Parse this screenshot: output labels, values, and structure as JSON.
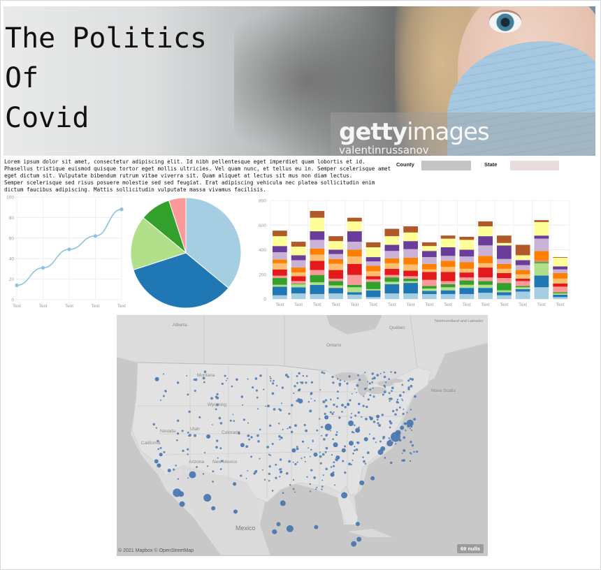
{
  "title": {
    "line1": "The Politics",
    "line2": "Of",
    "line3": "Covid"
  },
  "hero": {
    "watermark_logo_a": "getty",
    "watermark_logo_b": "images",
    "watermark_user": "valentinrussanov"
  },
  "intro": {
    "paragraph1": "Lorem ipsum dolor sit amet, consectetur adipiscing elit. Id nibh pellentesque eget imperdiet quam lobortis et id. Phasellus tristique euismod quisque tortor eget mollis ultricies. Vel quam nunc, et tellus eu in. Semper scelerisque amet eget dictum sit. Vulputate bibendum rutrum vitae viverra sit. Quam aliquet at lectus sit mus non diam lectus.",
    "paragraph2": "Semper scelerisque sed risus posuere molestie sed sed feugiat. Erat adipiscing vehicula nec platea sollicitudin enim dictum faucibus adipiscing. Mattis sollicitudin vulputate massa vivamus facilisis."
  },
  "filters": {
    "county": {
      "label": "County",
      "color": "#c4c4c4"
    },
    "state": {
      "label": "State",
      "color": "#e8dcdc"
    }
  },
  "chart_data": [
    {
      "type": "line",
      "x": [
        "Text",
        "Text",
        "Text",
        "Text",
        "Text"
      ],
      "values": [
        14,
        31,
        49,
        62,
        88
      ],
      "ylim": [
        0,
        100
      ],
      "yticks": [
        0,
        20,
        40,
        60,
        80,
        100
      ],
      "color": "#8ec1e0",
      "grid": true
    },
    {
      "type": "pie",
      "slices": [
        {
          "value": 36,
          "color": "#a6cee3"
        },
        {
          "value": 34,
          "color": "#1f78b4"
        },
        {
          "value": 16,
          "color": "#b2df8a"
        },
        {
          "value": 9,
          "color": "#33a02c"
        },
        {
          "value": 5,
          "color": "#fb9a99"
        }
      ]
    },
    {
      "type": "bar",
      "stacked": true,
      "categories": [
        "Text",
        "Text",
        "Text",
        "Text",
        "Text",
        "Text",
        "Text",
        "Text",
        "Text",
        "Text",
        "Text",
        "Text",
        "Text",
        "Text",
        "Text",
        "Text"
      ],
      "ylim": [
        0,
        800
      ],
      "yticks": [
        0,
        200,
        400,
        600,
        800
      ],
      "grid": true,
      "colors": [
        "#a6cee3",
        "#1f78b4",
        "#b2df8a",
        "#33a02c",
        "#fb9a99",
        "#e31a1c",
        "#fdbf6f",
        "#ff7f00",
        "#cab2d6",
        "#6a3d9a",
        "#ffff99",
        "#b15928"
      ],
      "series": [
        {
          "values": [
            30,
            45,
            40,
            45,
            35,
            15,
            45,
            45,
            40,
            40,
            40,
            50,
            30,
            60,
            95,
            15
          ]
        },
        {
          "values": [
            70,
            50,
            75,
            45,
            20,
            55,
            75,
            85,
            25,
            30,
            50,
            40,
            25,
            20,
            95,
            20
          ]
        },
        {
          "values": [
            15,
            25,
            20,
            20,
            40,
            10,
            20,
            15,
            20,
            25,
            25,
            25,
            15,
            15,
            100,
            10
          ]
        },
        {
          "values": [
            55,
            5,
            60,
            35,
            20,
            60,
            35,
            20,
            20,
            25,
            35,
            30,
            60,
            10,
            10,
            10
          ]
        },
        {
          "values": [
            20,
            20,
            40,
            20,
            80,
            20,
            20,
            20,
            50,
            25,
            25,
            30,
            40,
            40,
            5,
            45
          ]
        },
        {
          "values": [
            50,
            40,
            75,
            70,
            90,
            25,
            50,
            45,
            65,
            75,
            40,
            80,
            40,
            20,
            5,
            25
          ]
        },
        {
          "values": [
            50,
            30,
            50,
            50,
            60,
            40,
            45,
            50,
            20,
            40,
            30,
            35,
            35,
            35,
            5,
            40
          ]
        },
        {
          "values": [
            30,
            40,
            50,
            40,
            55,
            45,
            40,
            55,
            45,
            50,
            55,
            60,
            40,
            35,
            75,
            45
          ]
        },
        {
          "values": [
            60,
            60,
            70,
            40,
            65,
            35,
            60,
            70,
            55,
            40,
            45,
            85,
            40,
            40,
            100,
            30
          ]
        },
        {
          "values": [
            50,
            40,
            70,
            35,
            85,
            35,
            50,
            65,
            50,
            70,
            55,
            75,
            110,
            40,
            25,
            25
          ]
        },
        {
          "values": [
            80,
            70,
            110,
            70,
            80,
            80,
            70,
            70,
            40,
            70,
            80,
            80,
            20,
            40,
            110,
            70
          ]
        },
        {
          "values": [
            45,
            40,
            55,
            40,
            30,
            40,
            60,
            50,
            30,
            25,
            25,
            40,
            60,
            85,
            15,
            5
          ]
        }
      ]
    },
    {
      "type": "scatter",
      "subtype": "symbol-map",
      "basemap": "Mapbox",
      "attribution": "© 2021 Mapbox © OpenStreetMap",
      "nulls_label": "69 nulls",
      "place_labels": [
        "Alberta",
        "Québec",
        "Newfoundland and Labrador",
        "Ontario",
        "Nova Scotia",
        "Montana",
        "Wyoming",
        "Nevada",
        "Utah",
        "Colorado",
        "California",
        "Arizona",
        "New Mexico",
        "Mexico"
      ],
      "point_color": "#4a78b0",
      "points": [
        {
          "lon": -118.24,
          "lat": 34.05,
          "r": 6
        },
        {
          "lon": -122.3,
          "lat": 47.6,
          "r": 3
        },
        {
          "lon": -122.4,
          "lat": 37.8,
          "r": 3
        },
        {
          "lon": -121.9,
          "lat": 37.3,
          "r": 3
        },
        {
          "lon": -121.5,
          "lat": 38.6,
          "r": 2.5
        },
        {
          "lon": -117.2,
          "lat": 32.7,
          "r": 4
        },
        {
          "lon": -117.4,
          "lat": 33.9,
          "r": 4
        },
        {
          "lon": -119.8,
          "lat": 36.7,
          "r": 2.5
        },
        {
          "lon": -115.1,
          "lat": 36.2,
          "r": 5
        },
        {
          "lon": -112.1,
          "lat": 33.45,
          "r": 5.5
        },
        {
          "lon": -110.9,
          "lat": 32.2,
          "r": 3
        },
        {
          "lon": -111.9,
          "lat": 40.76,
          "r": 3
        },
        {
          "lon": -104.99,
          "lat": 39.74,
          "r": 3
        },
        {
          "lon": -106.6,
          "lat": 35.1,
          "r": 2.5
        },
        {
          "lon": -96.8,
          "lat": 32.8,
          "r": 4
        },
        {
          "lon": -95.37,
          "lat": 29.76,
          "r": 5
        },
        {
          "lon": -98.5,
          "lat": 29.4,
          "r": 3.5
        },
        {
          "lon": -97.7,
          "lat": 30.3,
          "r": 3
        },
        {
          "lon": -106.4,
          "lat": 31.8,
          "r": 3
        },
        {
          "lon": -90.07,
          "lat": 29.95,
          "r": 3
        },
        {
          "lon": -87.63,
          "lat": 41.88,
          "r": 5
        },
        {
          "lon": -83.05,
          "lat": 42.33,
          "r": 4
        },
        {
          "lon": -93.26,
          "lat": 44.98,
          "r": 3.5
        },
        {
          "lon": -90.2,
          "lat": 38.6,
          "r": 3
        },
        {
          "lon": -94.6,
          "lat": 39.1,
          "r": 3
        },
        {
          "lon": -86.8,
          "lat": 36.2,
          "r": 3
        },
        {
          "lon": -84.39,
          "lat": 33.75,
          "r": 4.5
        },
        {
          "lon": -80.19,
          "lat": 25.76,
          "r": 6
        },
        {
          "lon": -81.4,
          "lat": 28.5,
          "r": 3.5
        },
        {
          "lon": -82.46,
          "lat": 27.95,
          "r": 4
        },
        {
          "lon": -81.65,
          "lat": 30.33,
          "r": 3
        },
        {
          "lon": -80.84,
          "lat": 35.23,
          "r": 3.5
        },
        {
          "lon": -78.64,
          "lat": 35.78,
          "r": 3
        },
        {
          "lon": -77.04,
          "lat": 38.9,
          "r": 4
        },
        {
          "lon": -76.6,
          "lat": 39.3,
          "r": 3.5
        },
        {
          "lon": -75.17,
          "lat": 39.95,
          "r": 4.5
        },
        {
          "lon": -74.0,
          "lat": 40.71,
          "r": 7
        },
        {
          "lon": -73.5,
          "lat": 41.2,
          "r": 4
        },
        {
          "lon": -71.06,
          "lat": 42.36,
          "r": 5
        },
        {
          "lon": -72.7,
          "lat": 41.8,
          "r": 3
        },
        {
          "lon": -79.99,
          "lat": 40.44,
          "r": 3
        },
        {
          "lon": -81.69,
          "lat": 41.5,
          "r": 3.5
        },
        {
          "lon": -82.99,
          "lat": 39.96,
          "r": 3.5
        },
        {
          "lon": -84.5,
          "lat": 39.1,
          "r": 3
        },
        {
          "lon": -86.16,
          "lat": 39.77,
          "r": 3.5
        },
        {
          "lon": -85.7,
          "lat": 38.25,
          "r": 3
        },
        {
          "lon": -88.0,
          "lat": 43.04,
          "r": 3
        },
        {
          "lon": -77.6,
          "lat": 43.15,
          "r": 2.5
        },
        {
          "lon": -78.9,
          "lat": 42.9,
          "r": 2.5
        }
      ]
    }
  ]
}
